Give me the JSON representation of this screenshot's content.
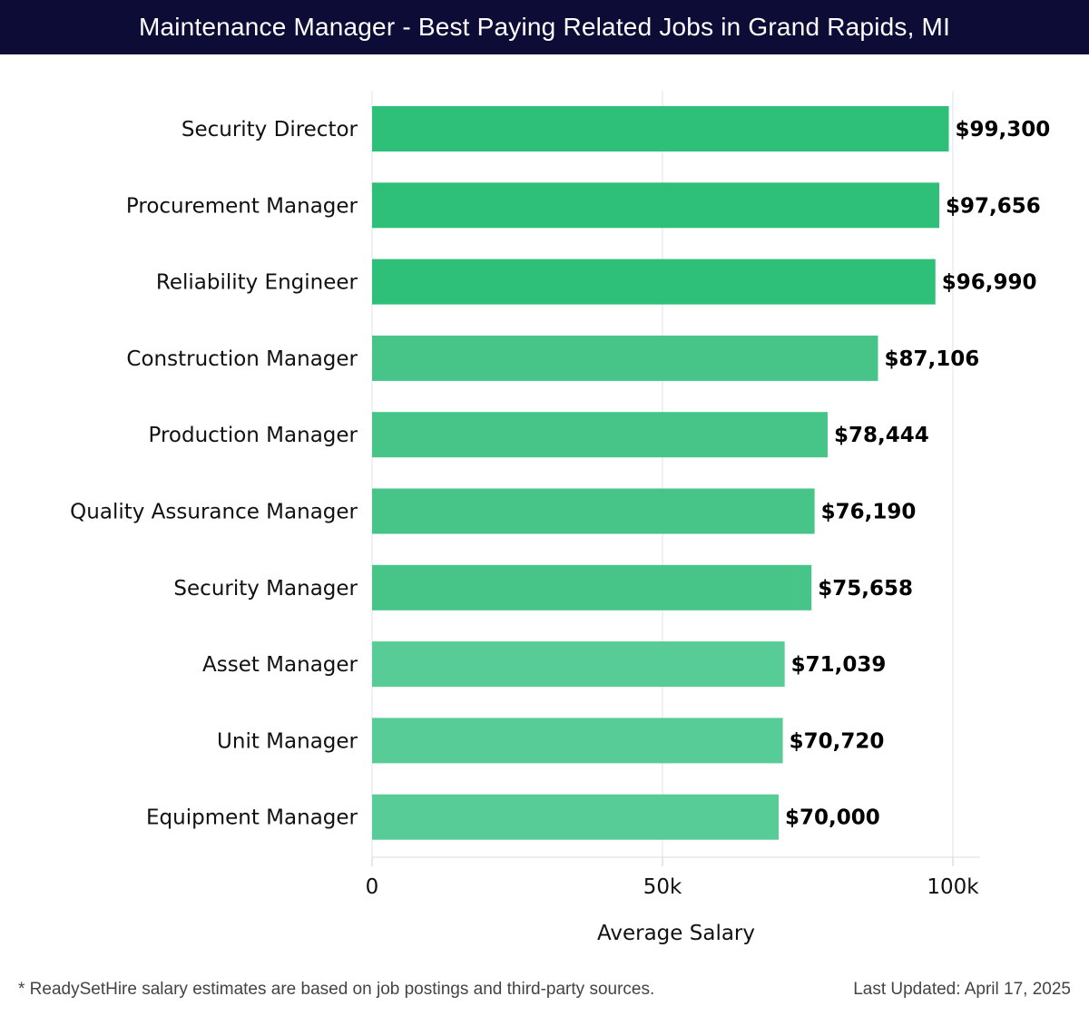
{
  "header": {
    "title": "Maintenance Manager - Best Paying Related Jobs in Grand Rapids, MI"
  },
  "colors": {
    "header_bg": "#0c0c36",
    "bar_high": "#2ebf78",
    "bar_mid": "#47c588",
    "bar_low": "#57cc96",
    "grid": "#e3e3e3",
    "text": "#111111"
  },
  "chart_data": {
    "type": "bar",
    "orientation": "horizontal",
    "categories": [
      "Security Director",
      "Procurement Manager",
      "Reliability Engineer",
      "Construction Manager",
      "Production Manager",
      "Quality Assurance Manager",
      "Security Manager",
      "Asset Manager",
      "Unit Manager",
      "Equipment Manager"
    ],
    "values": [
      99300,
      97656,
      96990,
      87106,
      78444,
      76190,
      75658,
      71039,
      70720,
      70000
    ],
    "value_labels": [
      "$99,300",
      "$97,656",
      "$96,990",
      "$87,106",
      "$78,444",
      "$76,190",
      "$75,658",
      "$71,039",
      "$70,720",
      "$70,000"
    ],
    "xlabel": "Average Salary",
    "ylabel": "",
    "xlim": [
      0,
      100000
    ],
    "ticks": [
      0,
      50000,
      100000
    ],
    "tick_labels": [
      "0",
      "50k",
      "100k"
    ],
    "grid": true
  },
  "footer": {
    "note": "* ReadySetHire salary estimates are based on job postings and third-party sources.",
    "updated": "Last Updated: April 17, 2025"
  }
}
